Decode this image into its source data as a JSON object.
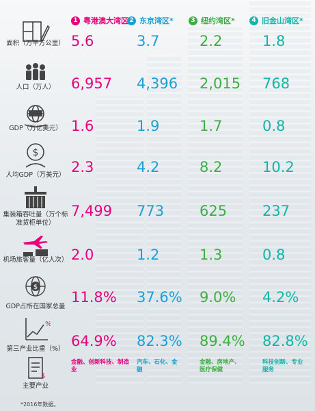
{
  "regions": [
    {
      "num": "1",
      "name": "粤港澳大湾区",
      "color": "#e5007e"
    },
    {
      "num": "2",
      "name": "东京湾区*",
      "color": "#1aa0d6"
    },
    {
      "num": "3",
      "name": "纽约湾区*",
      "color": "#3cae43"
    },
    {
      "num": "4",
      "name": "旧金山湾区*",
      "color": "#14b4a8"
    }
  ],
  "rows": [
    {
      "icon": "area-icon",
      "label": "面积（万平方公里）",
      "values": [
        "5.6",
        "3.7",
        "2.2",
        "1.8"
      ]
    },
    {
      "icon": "population-icon",
      "label": "人口（万人）",
      "values": [
        "6,957",
        "4,396",
        "2,015",
        "768"
      ]
    },
    {
      "icon": "gdp-icon",
      "label": "GDP（万亿美元）",
      "values": [
        "1.6",
        "1.9",
        "1.7",
        "0.8"
      ]
    },
    {
      "icon": "per-capita-gdp-icon",
      "label": "人均GDP（万美元）",
      "values": [
        "2.3",
        "4.2",
        "8.2",
        "10.2"
      ]
    },
    {
      "icon": "container-icon",
      "label": "集装箱吞吐量（万个标准货柜单位）",
      "values": [
        "7,499",
        "773",
        "625",
        "237"
      ]
    },
    {
      "icon": "airport-icon",
      "label": "机场旅客量（亿人次）",
      "values": [
        "2.0",
        "1.2",
        "1.3",
        "0.8"
      ]
    },
    {
      "icon": "gdp-share-icon",
      "label": "GDP占所在国家总量",
      "values": [
        "11.8%",
        "37.6%",
        "9.0%",
        "4.2%"
      ]
    },
    {
      "icon": "tertiary-icon",
      "label": "第三产业比重（%）",
      "values": [
        "64.9%",
        "82.3%",
        "89.4%",
        "82.8%"
      ]
    }
  ],
  "industries": {
    "icon": "industry-icon",
    "label": "主要产业",
    "values": [
      "金融、创新科技、制造业",
      "汽车、石化、金融",
      "金融、房地产、医疗保健",
      "科技创新、专业服务"
    ]
  },
  "footnote": "*2016年数据。"
}
